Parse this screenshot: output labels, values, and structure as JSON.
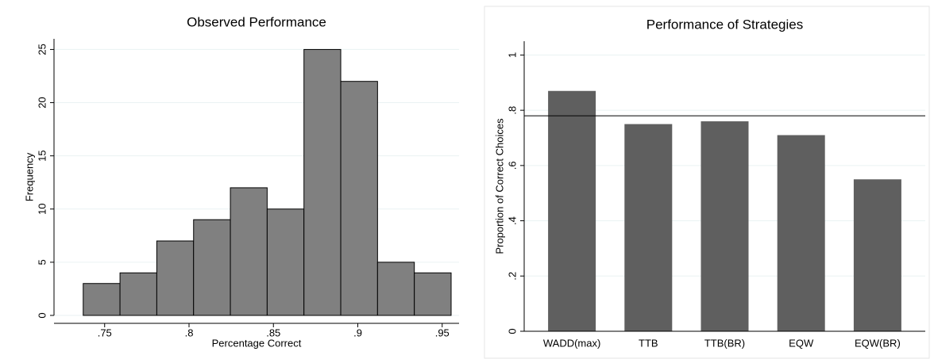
{
  "chart_data": [
    {
      "type": "histogram",
      "title": "Observed Performance",
      "xlabel": "Percentage Correct",
      "ylabel": "Frequency",
      "bins": [
        0.7373,
        0.7591,
        0.7809,
        0.8027,
        0.8245,
        0.8463,
        0.8681,
        0.8899,
        0.9117,
        0.9335,
        0.9553
      ],
      "values": [
        3,
        4,
        7,
        9,
        12,
        10,
        25,
        22,
        5,
        4
      ],
      "color": "#808080",
      "xlim": [
        0.72,
        0.96
      ],
      "xticks": [
        {
          "value": 0.75,
          "label": ".75"
        },
        {
          "value": 0.8,
          "label": ".8"
        },
        {
          "value": 0.85,
          "label": ".85"
        },
        {
          "value": 0.9,
          "label": ".9"
        },
        {
          "value": 0.95,
          "label": ".95"
        }
      ],
      "ylim": [
        0,
        26
      ],
      "yticks": [
        0,
        5,
        10,
        15,
        20,
        25
      ],
      "grid": true
    },
    {
      "type": "bar",
      "title": "Performance of Strategies",
      "ylabel": "Proportion of Correct Choices",
      "categories": [
        "WADD(max)",
        "TTB",
        "TTB(BR)",
        "EQW",
        "EQW(BR)"
      ],
      "values": [
        0.87,
        0.75,
        0.76,
        0.71,
        0.55
      ],
      "color": "#5f5f5f",
      "reference_line": 0.78,
      "ylim": [
        0,
        1.05
      ],
      "yticks": [
        0,
        {
          "value": 0.2,
          "label": ".2"
        },
        {
          "value": 0.4,
          "label": ".4"
        },
        {
          "value": 0.6,
          "label": ".6"
        },
        {
          "value": 0.8,
          "label": ".8"
        },
        1
      ],
      "grid": true
    }
  ]
}
